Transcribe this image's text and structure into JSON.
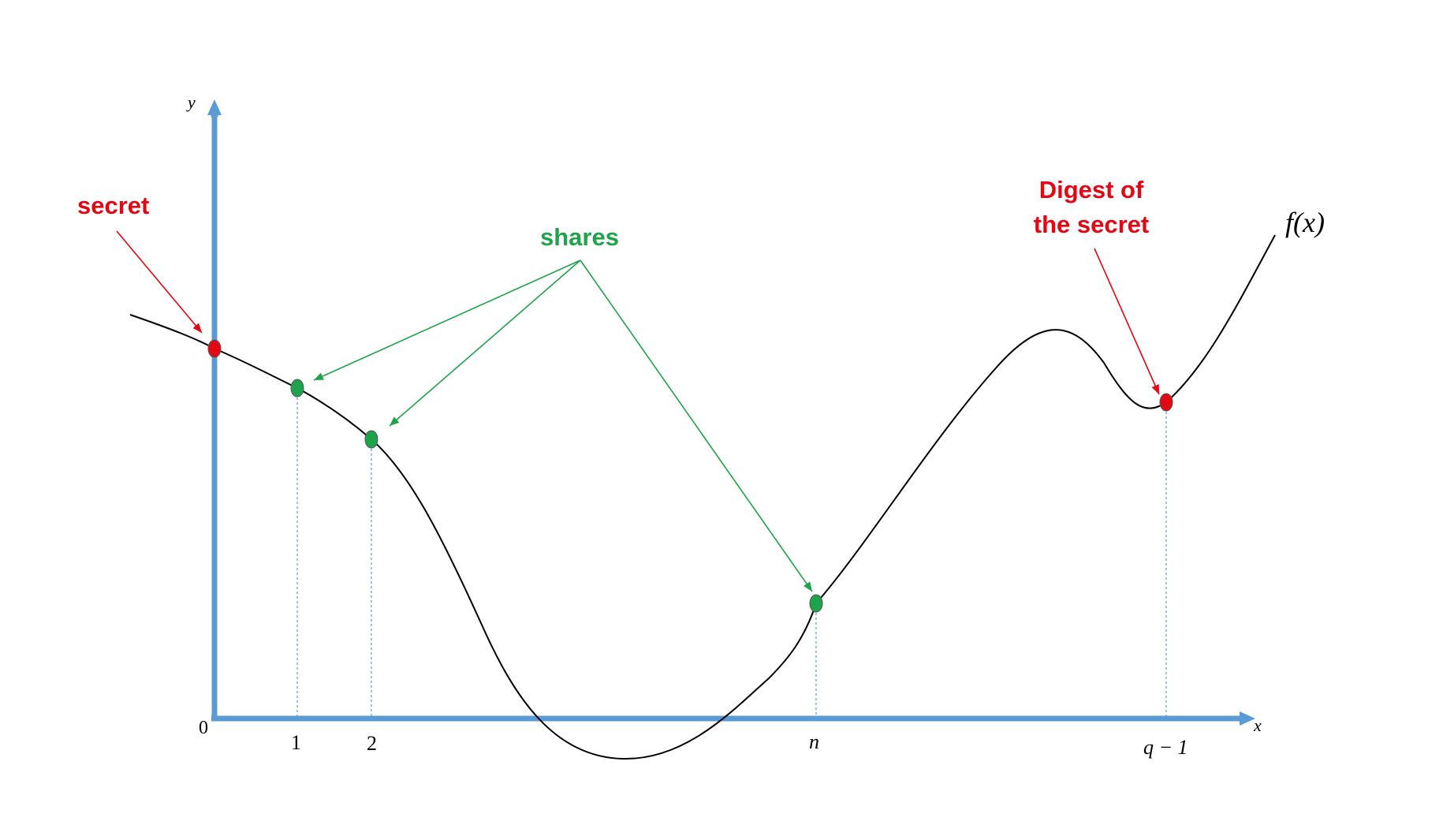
{
  "axes": {
    "y_label": "y",
    "x_label": "x",
    "origin_label": "0",
    "axis_color": "#5b9bd5"
  },
  "ticks": [
    {
      "id": "tick-1",
      "label": "1"
    },
    {
      "id": "tick-2",
      "label": "2"
    },
    {
      "id": "tick-n",
      "label": "n"
    },
    {
      "id": "tick-q-1",
      "label": "q − 1"
    }
  ],
  "curve": {
    "label": "f(x)",
    "color": "#000000"
  },
  "annotations": {
    "secret": {
      "text": "secret",
      "color": "#e30613"
    },
    "shares": {
      "text": "shares",
      "color": "#1fa34a"
    },
    "digest": {
      "line1": "Digest of",
      "line2": "the secret",
      "color": "#e30613"
    }
  },
  "points": {
    "secret_color": "#e30613",
    "share_color": "#1fa34a",
    "digest_color": "#e30613"
  }
}
